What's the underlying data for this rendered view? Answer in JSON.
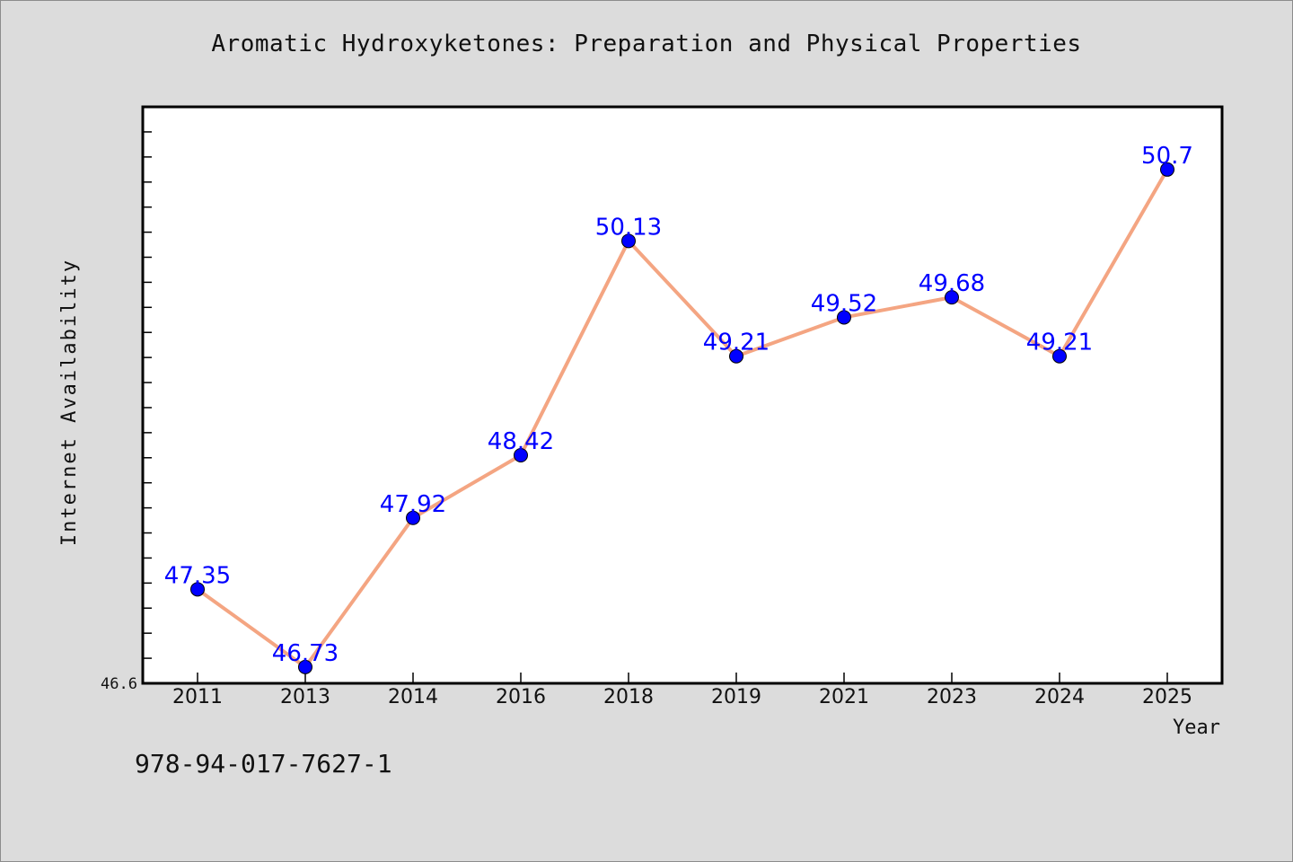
{
  "title": "Aromatic Hydroxyketones: Preparation and Physical Properties",
  "isbn": "978-94-017-7627-1",
  "chart_data": {
    "type": "line",
    "title": "Aromatic Hydroxyketones: Preparation and Physical Properties",
    "xlabel": "Year",
    "ylabel": "Internet Availability",
    "categories": [
      "2011",
      "2013",
      "2014",
      "2016",
      "2018",
      "2019",
      "2021",
      "2023",
      "2024",
      "2025"
    ],
    "series": [
      {
        "values": [
          47.35,
          46.73,
          47.92,
          48.42,
          50.13,
          49.21,
          49.52,
          49.68,
          49.21,
          50.7
        ]
      }
    ],
    "data_labels": [
      "47.35",
      "46.73",
      "47.92",
      "48.42",
      "50.13",
      "49.21",
      "49.52",
      "49.68",
      "49.21",
      "50.7"
    ],
    "y_tick_labels": [
      "46.6"
    ],
    "ylim": [
      46.6,
      51.2
    ],
    "grid": false,
    "legend": "none",
    "colors": {
      "line": "#f4a582",
      "marker": "#0000ff",
      "label": "#0000ff",
      "plot_bg": "#ffffff",
      "page_bg": "#dcdcdc"
    }
  }
}
